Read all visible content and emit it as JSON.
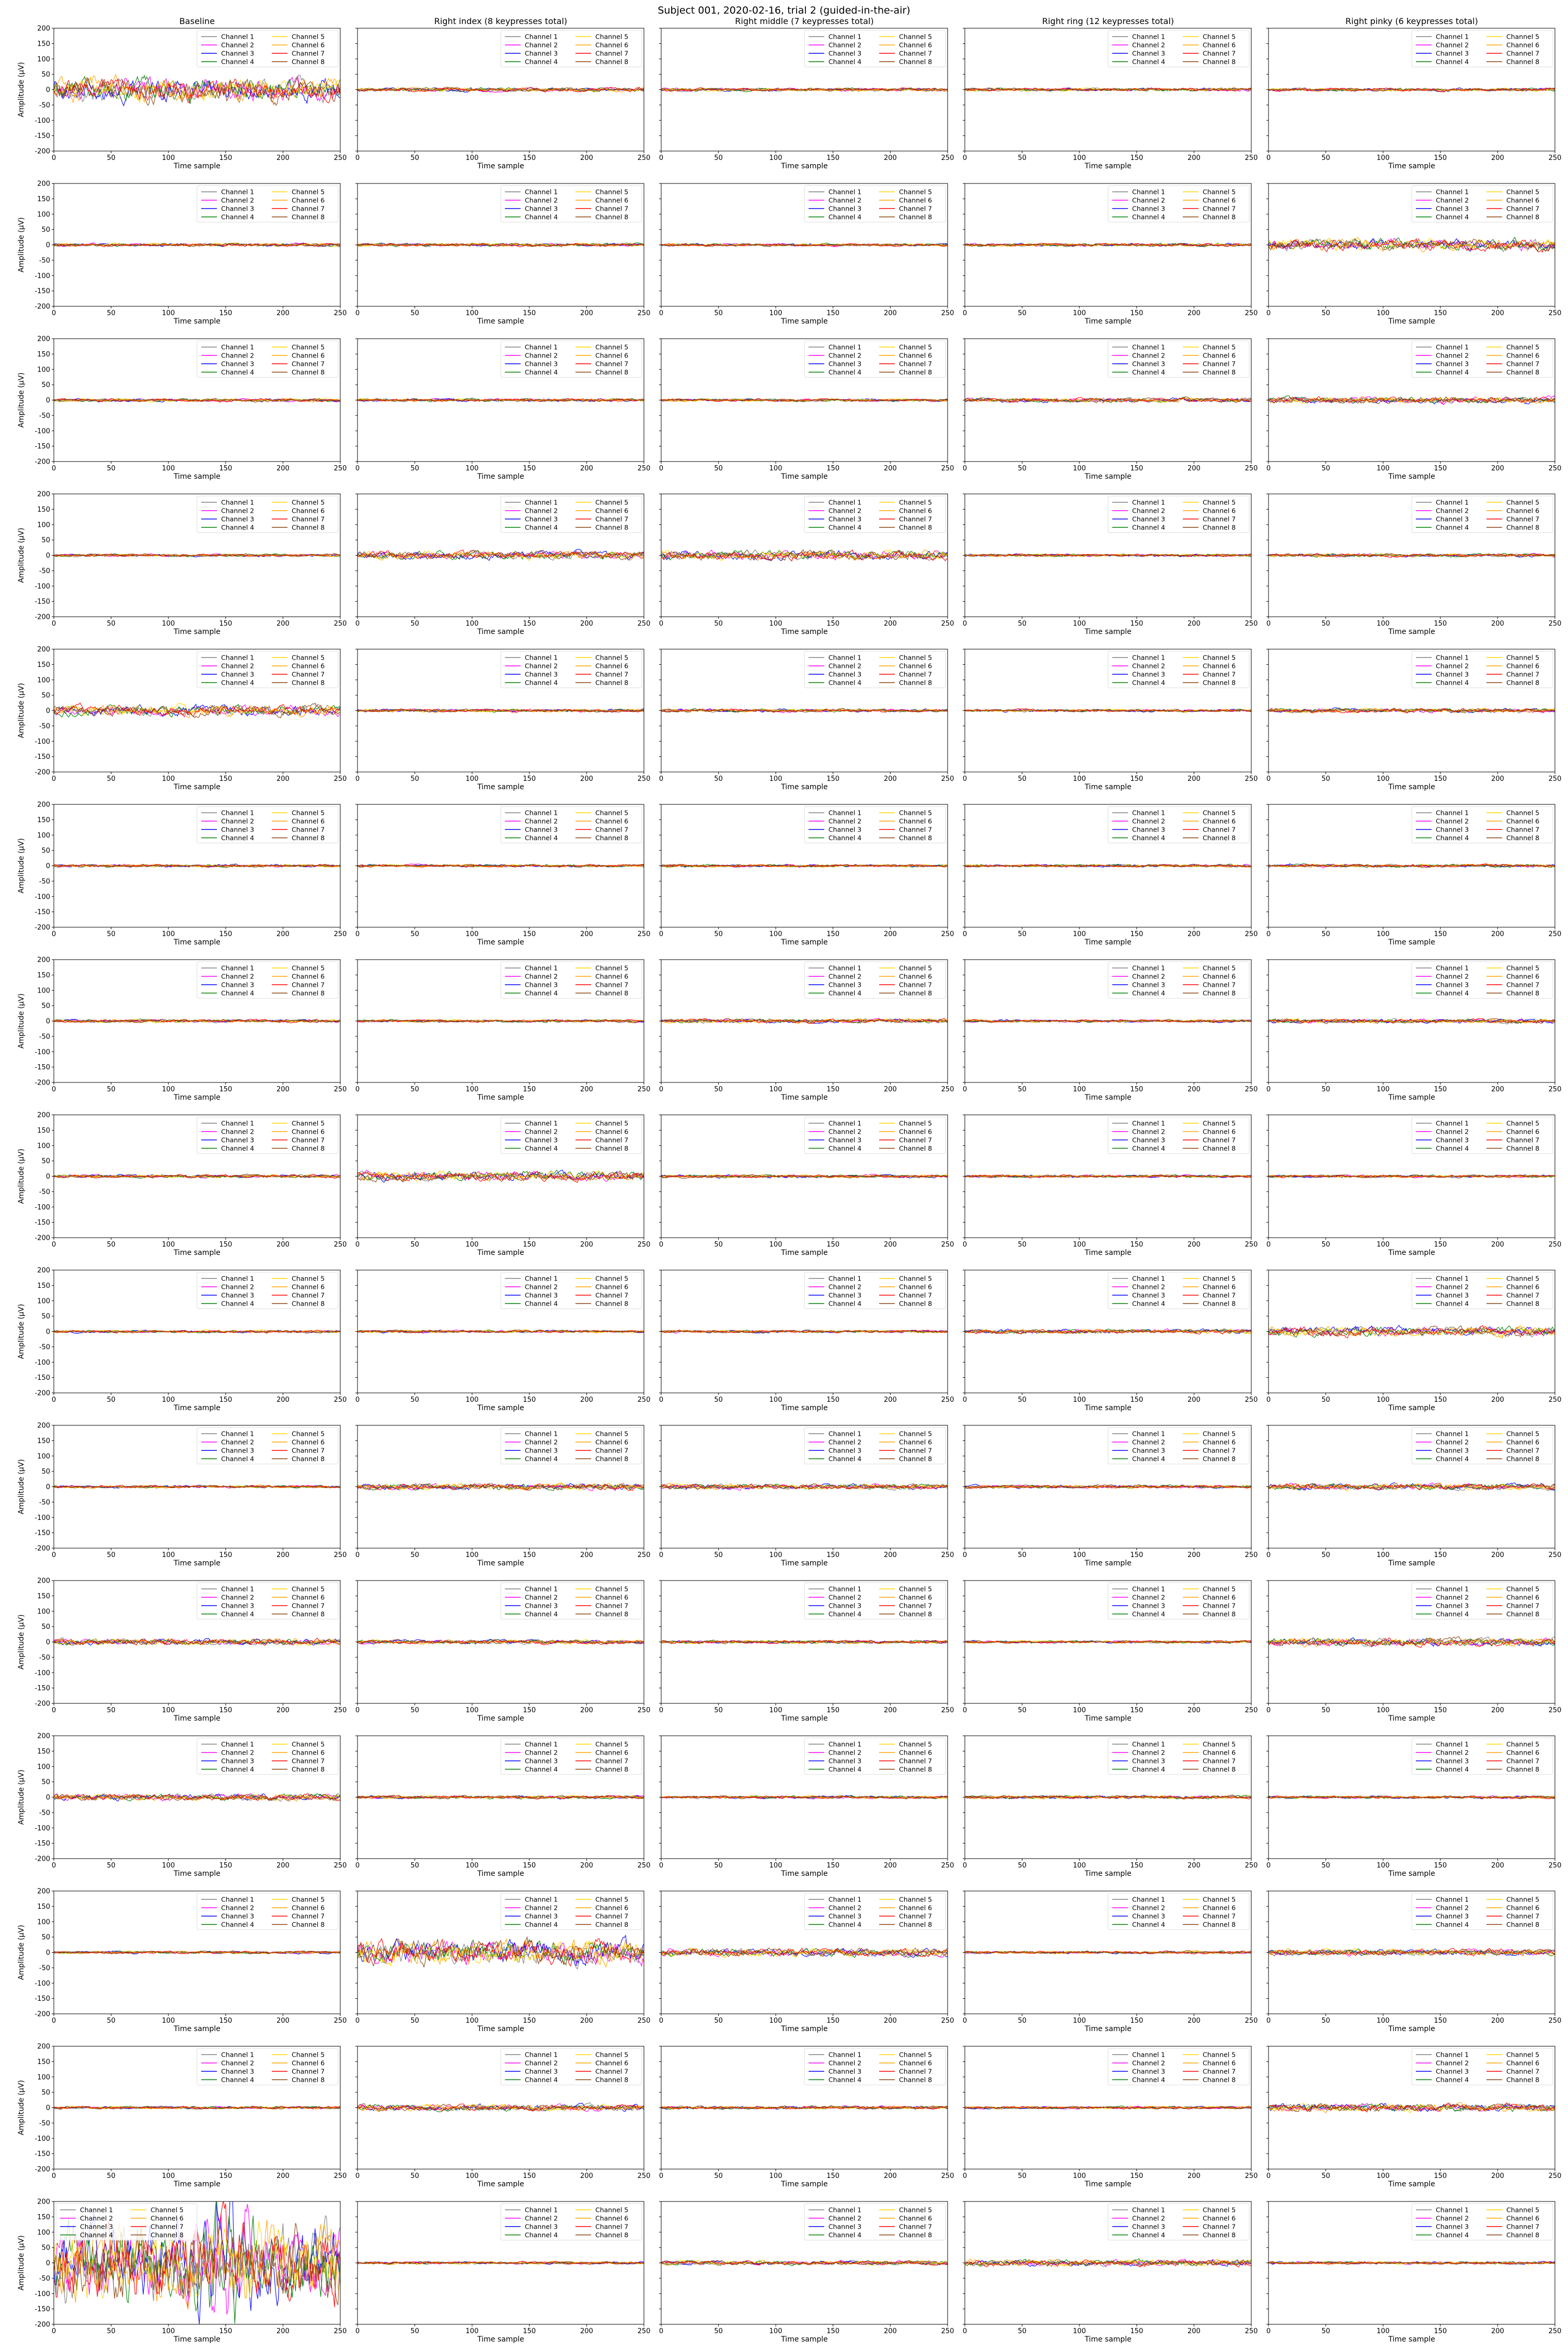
{
  "figure": {
    "suptitle": "Subject 001, 2020-02-16, trial 2 (guided-in-the-air)",
    "columns": [
      "Baseline",
      "Right index (8 keypresses total)",
      "Right middle (7 keypresses total)",
      "Right ring (12 keypresses total)",
      "Right pinky (6 keypresses total)"
    ],
    "rows": 15,
    "legend_entries": [
      "Channel 1",
      "Channel 2",
      "Channel 3",
      "Channel 4",
      "Channel 5",
      "Channel 6",
      "Channel 7",
      "Channel 8"
    ],
    "series_colors": [
      "#808080",
      "#ff00ff",
      "#0000ff",
      "#008000",
      "#ffd700",
      "#ffa500",
      "#ff0000",
      "#8b4513"
    ]
  },
  "chart_data": {
    "type": "line",
    "layout": "grid of 15 rows x 5 columns, shared axes",
    "xlabel": "Time sample",
    "ylabel": "Amplitude (µV)",
    "xlim": [
      0,
      250
    ],
    "ylim": [
      -200,
      200
    ],
    "xticks": [
      0,
      50,
      100,
      150,
      200,
      250
    ],
    "yticks": [
      200,
      150,
      100,
      50,
      0,
      -50,
      -100,
      -150,
      -200
    ],
    "legend_placement": "upper right (lower left in row 15, column 1)",
    "series": [
      {
        "name": "Channel 1",
        "color": "#808080"
      },
      {
        "name": "Channel 2",
        "color": "#ff00ff"
      },
      {
        "name": "Channel 3",
        "color": "#0000ff"
      },
      {
        "name": "Channel 4",
        "color": "#008000"
      },
      {
        "name": "Channel 5",
        "color": "#ffd700"
      },
      {
        "name": "Channel 6",
        "color": "#ffa500"
      },
      {
        "name": "Channel 7",
        "color": "#ff0000"
      },
      {
        "name": "Channel 8",
        "color": "#8b4513"
      }
    ],
    "amplitude_envelope_uV": [
      [
        45,
        8,
        6,
        6,
        6
      ],
      [
        6,
        6,
        5,
        6,
        22
      ],
      [
        6,
        6,
        5,
        8,
        12
      ],
      [
        5,
        15,
        18,
        5,
        6
      ],
      [
        20,
        6,
        6,
        5,
        8
      ],
      [
        5,
        5,
        5,
        5,
        6
      ],
      [
        6,
        5,
        8,
        5,
        8
      ],
      [
        6,
        18,
        6,
        5,
        5
      ],
      [
        5,
        5,
        5,
        8,
        18
      ],
      [
        5,
        12,
        10,
        6,
        12
      ],
      [
        12,
        8,
        6,
        5,
        15
      ],
      [
        12,
        6,
        5,
        6,
        5
      ],
      [
        5,
        45,
        15,
        5,
        12
      ],
      [
        5,
        12,
        6,
        5,
        15
      ],
      [
        150,
        5,
        8,
        12,
        5
      ]
    ]
  }
}
